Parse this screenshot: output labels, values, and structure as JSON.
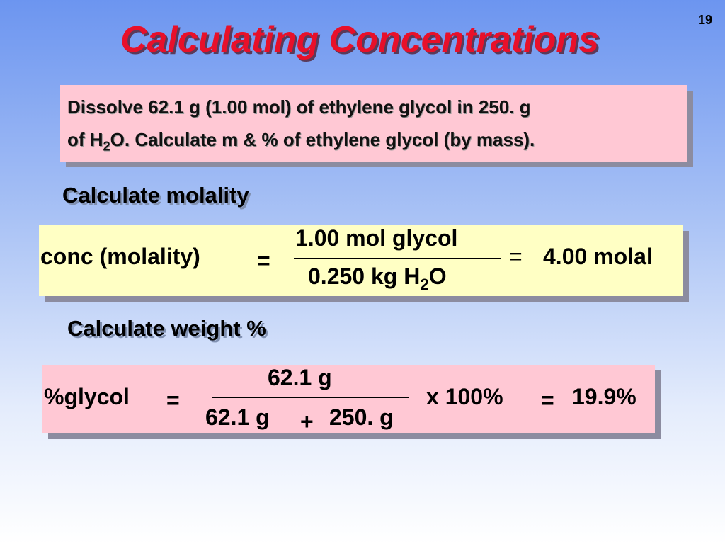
{
  "page_number": "19",
  "title": "Calculating Concentrations",
  "problem": {
    "line1": "Dissolve 62.1 g (1.00 mol) of ethylene glycol in 250. g",
    "line2": {
      "before": "of H",
      "subscript": "2",
      "after": "O. Calculate m & % of ethylene glycol (by mass)."
    }
  },
  "molality": {
    "heading": "Calculate molality",
    "label": "conc (molality)",
    "equals": "=",
    "numerator": "1.00 mol glycol",
    "denominator": {
      "before": "0.250 kg H",
      "subscript": "2",
      "after": "O"
    },
    "equals_result": "=",
    "result": "4.00 molal"
  },
  "weight_percent": {
    "heading": "Calculate weight %",
    "label": "%glycol",
    "equals": "=",
    "numerator": "62.1 g",
    "denominator": {
      "term1": "62.1 g",
      "plus": "+",
      "term2": "250. g"
    },
    "multiplier": "x 100%",
    "equals_result": "=",
    "result": "19.9%"
  }
}
